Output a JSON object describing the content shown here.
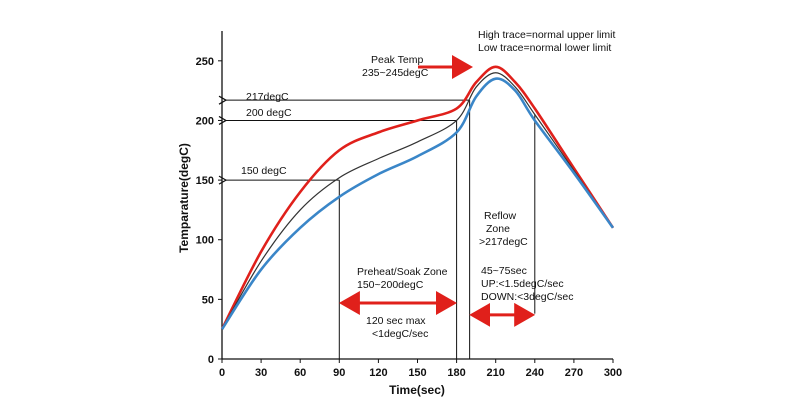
{
  "chart_data": {
    "type": "line",
    "xlabel": "Time(sec)",
    "ylabel": "Temparature(degC)",
    "xlim": [
      0,
      300
    ],
    "ylim": [
      0,
      275
    ],
    "xticks": [
      0,
      30,
      60,
      90,
      120,
      150,
      180,
      210,
      240,
      270,
      300
    ],
    "yticks": [
      0,
      50,
      100,
      150,
      200,
      250
    ],
    "xtick_labels": [
      "0",
      "30",
      "60",
      "90",
      "120",
      "150",
      "180",
      "210",
      "240",
      "270",
      "300"
    ],
    "ytick_labels": [
      "0",
      "50",
      "100",
      "150",
      "200",
      "250"
    ],
    "grid": false,
    "series": [
      {
        "color": "#e0201b",
        "x": [
          0,
          30,
          60,
          90,
          120,
          150,
          180,
          195,
          210,
          225,
          240,
          270,
          300
        ],
        "y": [
          25,
          90,
          140,
          175,
          190,
          200,
          210,
          232,
          245,
          232,
          210,
          160,
          110
        ]
      },
      {
        "color": "#333333",
        "x": [
          0,
          30,
          60,
          90,
          120,
          150,
          180,
          195,
          210,
          225,
          240,
          270,
          300
        ],
        "y": [
          25,
          82,
          125,
          152,
          168,
          182,
          200,
          228,
          240,
          228,
          205,
          158,
          110
        ]
      },
      {
        "color": "#3a86c8",
        "x": [
          0,
          30,
          60,
          90,
          120,
          150,
          180,
          195,
          210,
          225,
          240,
          270,
          300
        ],
        "y": [
          25,
          75,
          110,
          136,
          155,
          170,
          190,
          220,
          235,
          225,
          200,
          156,
          110
        ]
      }
    ],
    "annotations": {
      "legend_line1": "High trace=normal upper limit",
      "legend_line2": "Low trace=normal lower limit",
      "peak_line1": "Peak Temp",
      "peak_line2": "235~245degC",
      "ref_217": "217degC",
      "ref_200": "200 degC",
      "ref_150": "150 degC",
      "preheat_line1": "Preheat/Soak Zone",
      "preheat_line2": "150~200degC",
      "preheat_rate1": "120 sec max",
      "preheat_rate2": "<1degC/sec",
      "reflow_line1": "Reflow",
      "reflow_line2": "Zone",
      "reflow_line3": ">217degC",
      "reflow_time": "45~75sec",
      "reflow_up": "UP:<1.5degC/sec",
      "reflow_down": "DOWN:<3degC/sec"
    },
    "colors": {
      "high": "#e0201b",
      "mid": "#333333",
      "low": "#3a86c8",
      "arrow": "#e0201b",
      "guide": "#111111"
    }
  }
}
